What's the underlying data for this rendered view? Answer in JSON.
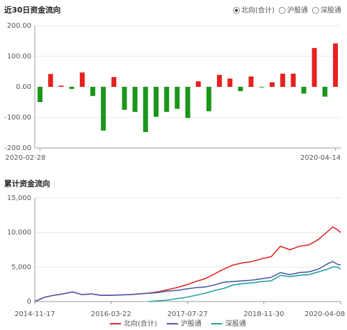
{
  "chart_data": [
    {
      "type": "bar",
      "title": "近30日资金流向",
      "options": [
        "北向(合计)",
        "沪股通",
        "深股通"
      ],
      "selected": 0,
      "categories": [
        "2020-02-28",
        null,
        null,
        null,
        null,
        null,
        null,
        null,
        null,
        null,
        null,
        null,
        null,
        null,
        null,
        null,
        null,
        null,
        null,
        null,
        null,
        null,
        null,
        null,
        null,
        null,
        null,
        null,
        "2020-04-14"
      ],
      "values": [
        -50,
        42,
        4,
        -7,
        47,
        -30,
        -143,
        32,
        -75,
        -82,
        -148,
        -98,
        -82,
        -72,
        -102,
        18,
        -80,
        39,
        27,
        -14,
        34,
        -2,
        15,
        43,
        43,
        -22,
        127,
        -32,
        142
      ],
      "positive_color": "#e8201e",
      "negative_color": "#1a961a",
      "ylim": [
        -200,
        200
      ],
      "yticks": [
        {
          "value": 200,
          "label": "200.00"
        },
        {
          "value": 100,
          "label": "100.00"
        },
        {
          "value": 0,
          "label": "0.00"
        },
        {
          "value": -100,
          "label": "-100.00"
        },
        {
          "value": -200,
          "label": "-200.00"
        }
      ],
      "grid": true
    },
    {
      "type": "line",
      "title": "累计资金流向",
      "x": [
        "2014-11-17",
        "2015-01-17",
        "2015-03-17",
        "2015-05-17",
        "2015-07-17",
        "2015-09-17",
        "2015-11-17",
        "2016-01-17",
        "2016-03-17",
        "2016-05-17",
        "2016-07-17",
        "2016-09-17",
        "2016-11-17",
        "2017-01-17",
        "2017-03-17",
        "2017-05-17",
        "2017-07-17",
        "2017-09-17",
        "2017-11-17",
        "2018-01-17",
        "2018-03-17",
        "2018-05-17",
        "2018-07-17",
        "2018-09-17",
        "2018-11-17",
        "2019-01-17",
        "2019-03-17",
        "2019-05-17",
        "2019-07-17",
        "2019-09-17",
        "2019-11-17",
        "2020-01-17",
        "2020-02-17",
        "2020-03-17",
        "2020-04-08"
      ],
      "series": [
        {
          "name": "北向(合计)",
          "color": "#e02424",
          "values": [
            0,
            600,
            900,
            1100,
            1400,
            1000,
            1100,
            900,
            900,
            950,
            1000,
            1100,
            1200,
            1400,
            1700,
            2000,
            2400,
            2900,
            3300,
            4000,
            4700,
            5300,
            5600,
            5800,
            6200,
            6500,
            8000,
            7500,
            8000,
            8200,
            9000,
            10200,
            10800,
            10400,
            10000
          ]
        },
        {
          "name": "沪股通",
          "color": "#4a5dab",
          "values": [
            0,
            600,
            900,
            1100,
            1400,
            1000,
            1100,
            900,
            900,
            950,
            1000,
            1100,
            1200,
            1300,
            1500,
            1600,
            1800,
            2000,
            2100,
            2400,
            2800,
            2900,
            3000,
            3100,
            3300,
            3500,
            4200,
            3900,
            4200,
            4300,
            4700,
            5500,
            5800,
            5400,
            5300
          ]
        },
        {
          "name": "深股通",
          "color": "#23a0a0",
          "values": [
            null,
            null,
            null,
            null,
            null,
            null,
            null,
            null,
            null,
            null,
            null,
            null,
            0,
            100,
            200,
            400,
            600,
            900,
            1200,
            1600,
            1900,
            2400,
            2600,
            2700,
            2900,
            3000,
            3800,
            3600,
            3800,
            3900,
            4300,
            4700,
            5000,
            5000,
            4700
          ]
        }
      ],
      "xlim": [
        "2014-11-17",
        "2020-04-08"
      ],
      "xticks": [
        "2014-11-17",
        "2016-03-22",
        "2017-07-27",
        "2018-11-30",
        "2020-04-08"
      ],
      "ylim": [
        0,
        15000
      ],
      "yticks": [
        0,
        {
          "value": 5000,
          "label": "5,000"
        },
        {
          "value": 10000,
          "label": "10,000"
        },
        {
          "value": 15000,
          "label": "15,000"
        }
      ],
      "grid": true
    }
  ]
}
